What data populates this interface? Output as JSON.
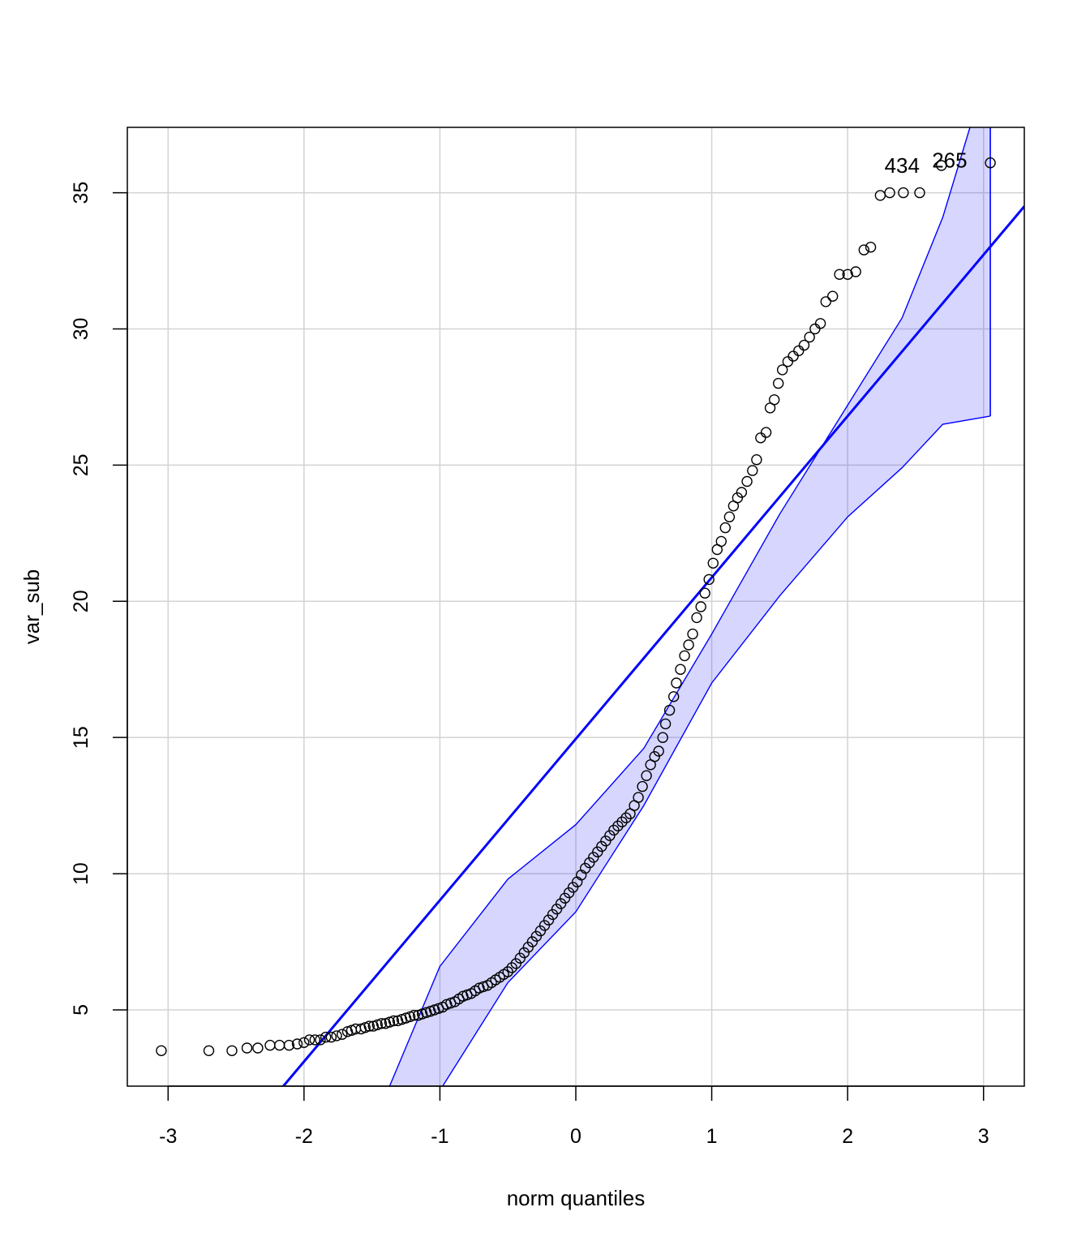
{
  "chart_data": {
    "type": "scatter",
    "title": "",
    "xlabel": "norm quantiles",
    "ylabel": "var_sub",
    "xlim": [
      -3.3,
      3.3
    ],
    "ylim": [
      2.2,
      37.4
    ],
    "x_ticks": [
      -3,
      -2,
      -1,
      0,
      1,
      2,
      3
    ],
    "y_ticks": [
      5,
      10,
      15,
      20,
      25,
      30,
      35
    ],
    "x_tick_labels": [
      "-3",
      "-2",
      "-1",
      "0",
      "1",
      "2",
      "3"
    ],
    "y_tick_labels": [
      "5",
      "10",
      "15",
      "20",
      "25",
      "30",
      "35"
    ],
    "grid": true,
    "colors": {
      "points": "#000000",
      "line": "#0000ff",
      "band": "#0000ff",
      "grid": "#d3d3d3"
    },
    "reference_line": {
      "points": [
        [
          -3.3,
          -4.6
        ],
        [
          3.3,
          34.5
        ]
      ]
    },
    "envelope_upper": [
      [
        -1.37,
        2.2
      ],
      [
        -1.0,
        6.6
      ],
      [
        -0.5,
        9.8
      ],
      [
        0.0,
        11.8
      ],
      [
        0.5,
        14.6
      ],
      [
        1.0,
        18.8
      ],
      [
        1.5,
        23.2
      ],
      [
        2.0,
        27.2
      ],
      [
        2.4,
        30.4
      ],
      [
        2.7,
        34.1
      ],
      [
        2.9,
        37.4
      ]
    ],
    "envelope_lower": [
      [
        -0.98,
        2.2
      ],
      [
        -0.5,
        6.0
      ],
      [
        0.0,
        8.6
      ],
      [
        0.5,
        12.5
      ],
      [
        1.0,
        17.0
      ],
      [
        1.5,
        20.2
      ],
      [
        2.0,
        23.1
      ],
      [
        2.4,
        24.9
      ],
      [
        2.7,
        26.5
      ],
      [
        3.05,
        26.8
      ]
    ],
    "band_right_x": 3.05,
    "point_labels": [
      {
        "text": "434",
        "x": 2.53,
        "y": 36.0
      },
      {
        "text": "265",
        "x": 2.88,
        "y": 36.2
      }
    ],
    "qq_points": [
      [
        -3.05,
        3.5
      ],
      [
        -2.7,
        3.5
      ],
      [
        -2.53,
        3.5
      ],
      [
        -2.42,
        3.6
      ],
      [
        -2.34,
        3.6
      ],
      [
        -2.25,
        3.7
      ],
      [
        -2.18,
        3.7
      ],
      [
        -2.11,
        3.7
      ],
      [
        -2.05,
        3.75
      ],
      [
        -2.0,
        3.8
      ],
      [
        -1.96,
        3.9
      ],
      [
        -1.92,
        3.9
      ],
      [
        -1.88,
        3.9
      ],
      [
        -1.84,
        4.0
      ],
      [
        -1.8,
        4.0
      ],
      [
        -1.76,
        4.05
      ],
      [
        -1.72,
        4.1
      ],
      [
        -1.68,
        4.2
      ],
      [
        -1.65,
        4.25
      ],
      [
        -1.62,
        4.3
      ],
      [
        -1.58,
        4.3
      ],
      [
        -1.55,
        4.35
      ],
      [
        -1.52,
        4.4
      ],
      [
        -1.49,
        4.4
      ],
      [
        -1.46,
        4.45
      ],
      [
        -1.43,
        4.5
      ],
      [
        -1.4,
        4.5
      ],
      [
        -1.37,
        4.55
      ],
      [
        -1.34,
        4.6
      ],
      [
        -1.31,
        4.6
      ],
      [
        -1.28,
        4.65
      ],
      [
        -1.25,
        4.7
      ],
      [
        -1.22,
        4.75
      ],
      [
        -1.19,
        4.8
      ],
      [
        -1.16,
        4.8
      ],
      [
        -1.13,
        4.85
      ],
      [
        -1.1,
        4.9
      ],
      [
        -1.07,
        4.95
      ],
      [
        -1.04,
        5.0
      ],
      [
        -1.01,
        5.05
      ],
      [
        -0.98,
        5.1
      ],
      [
        -0.95,
        5.2
      ],
      [
        -0.92,
        5.25
      ],
      [
        -0.89,
        5.3
      ],
      [
        -0.86,
        5.4
      ],
      [
        -0.83,
        5.5
      ],
      [
        -0.8,
        5.55
      ],
      [
        -0.77,
        5.6
      ],
      [
        -0.74,
        5.7
      ],
      [
        -0.71,
        5.8
      ],
      [
        -0.68,
        5.85
      ],
      [
        -0.65,
        5.9
      ],
      [
        -0.62,
        6.0
      ],
      [
        -0.59,
        6.1
      ],
      [
        -0.56,
        6.2
      ],
      [
        -0.53,
        6.3
      ],
      [
        -0.5,
        6.4
      ],
      [
        -0.47,
        6.55
      ],
      [
        -0.44,
        6.7
      ],
      [
        -0.41,
        6.9
      ],
      [
        -0.38,
        7.1
      ],
      [
        -0.35,
        7.3
      ],
      [
        -0.32,
        7.5
      ],
      [
        -0.29,
        7.7
      ],
      [
        -0.26,
        7.9
      ],
      [
        -0.23,
        8.1
      ],
      [
        -0.2,
        8.3
      ],
      [
        -0.17,
        8.5
      ],
      [
        -0.14,
        8.7
      ],
      [
        -0.11,
        8.9
      ],
      [
        -0.08,
        9.1
      ],
      [
        -0.05,
        9.3
      ],
      [
        -0.02,
        9.5
      ],
      [
        0.01,
        9.7
      ],
      [
        0.04,
        9.95
      ],
      [
        0.07,
        10.2
      ],
      [
        0.1,
        10.4
      ],
      [
        0.13,
        10.6
      ],
      [
        0.16,
        10.8
      ],
      [
        0.19,
        11.0
      ],
      [
        0.22,
        11.2
      ],
      [
        0.25,
        11.4
      ],
      [
        0.28,
        11.6
      ],
      [
        0.31,
        11.75
      ],
      [
        0.34,
        11.9
      ],
      [
        0.37,
        12.05
      ],
      [
        0.4,
        12.2
      ],
      [
        0.43,
        12.5
      ],
      [
        0.46,
        12.8
      ],
      [
        0.49,
        13.2
      ],
      [
        0.52,
        13.6
      ],
      [
        0.55,
        14.0
      ],
      [
        0.58,
        14.3
      ],
      [
        0.61,
        14.5
      ],
      [
        0.64,
        15.0
      ],
      [
        0.66,
        15.5
      ],
      [
        0.69,
        16.0
      ],
      [
        0.72,
        16.5
      ],
      [
        0.74,
        17.0
      ],
      [
        0.77,
        17.5
      ],
      [
        0.8,
        18.0
      ],
      [
        0.83,
        18.4
      ],
      [
        0.86,
        18.8
      ],
      [
        0.89,
        19.4
      ],
      [
        0.92,
        19.8
      ],
      [
        0.95,
        20.3
      ],
      [
        0.98,
        20.8
      ],
      [
        1.01,
        21.4
      ],
      [
        1.04,
        21.9
      ],
      [
        1.07,
        22.2
      ],
      [
        1.1,
        22.7
      ],
      [
        1.13,
        23.1
      ],
      [
        1.16,
        23.5
      ],
      [
        1.19,
        23.8
      ],
      [
        1.22,
        24.0
      ],
      [
        1.26,
        24.4
      ],
      [
        1.3,
        24.8
      ],
      [
        1.33,
        25.2
      ],
      [
        1.36,
        26.0
      ],
      [
        1.4,
        26.2
      ],
      [
        1.43,
        27.1
      ],
      [
        1.46,
        27.4
      ],
      [
        1.49,
        28.0
      ],
      [
        1.52,
        28.5
      ],
      [
        1.56,
        28.8
      ],
      [
        1.6,
        29.0
      ],
      [
        1.64,
        29.2
      ],
      [
        1.68,
        29.4
      ],
      [
        1.72,
        29.7
      ],
      [
        1.76,
        30.0
      ],
      [
        1.8,
        30.2
      ],
      [
        1.84,
        31.0
      ],
      [
        1.89,
        31.2
      ],
      [
        1.94,
        32.0
      ],
      [
        2.0,
        32.0
      ],
      [
        2.06,
        32.1
      ],
      [
        2.12,
        32.9
      ],
      [
        2.17,
        33.0
      ],
      [
        2.24,
        34.9
      ],
      [
        2.31,
        35.0
      ],
      [
        2.41,
        35.0
      ],
      [
        2.53,
        35.0
      ],
      [
        2.69,
        36.0
      ],
      [
        3.05,
        36.1
      ]
    ]
  }
}
